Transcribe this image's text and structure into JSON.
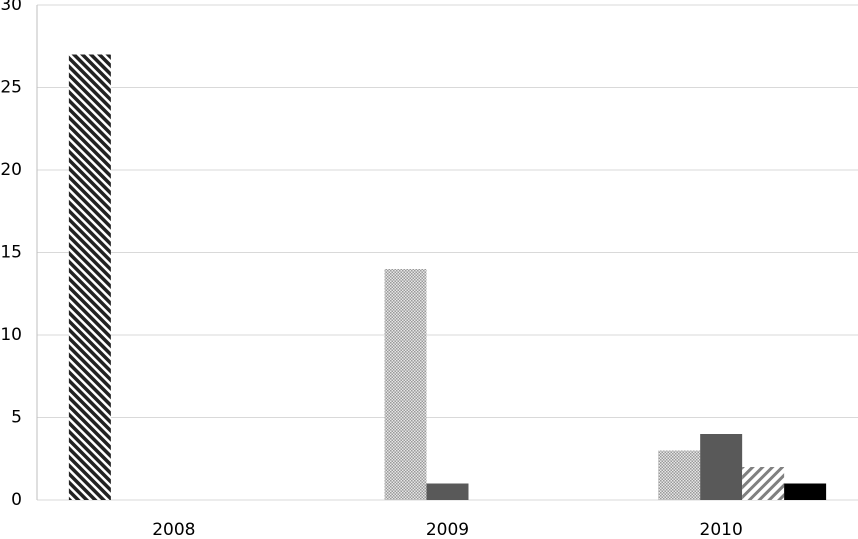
{
  "chart_data": {
    "type": "bar",
    "categories": [
      "2008",
      "2009",
      "2010"
    ],
    "series": [
      {
        "color": "#222222",
        "pattern": "diagonal-dense",
        "values": [
          27,
          null,
          null
        ]
      },
      {
        "color": "#9a9a9a",
        "pattern": "dots",
        "values": [
          null,
          14,
          3
        ]
      },
      {
        "color": "#595959",
        "pattern": "solid",
        "values": [
          null,
          1,
          4
        ]
      },
      {
        "color": "#808080",
        "pattern": "diagonal",
        "values": [
          null,
          null,
          2
        ]
      },
      {
        "color": "#000000",
        "pattern": "solid",
        "values": [
          null,
          null,
          1
        ]
      }
    ],
    "ylim": [
      0,
      30
    ],
    "yticks": [
      0,
      5,
      10,
      15,
      20,
      25,
      30
    ],
    "grid": true
  }
}
